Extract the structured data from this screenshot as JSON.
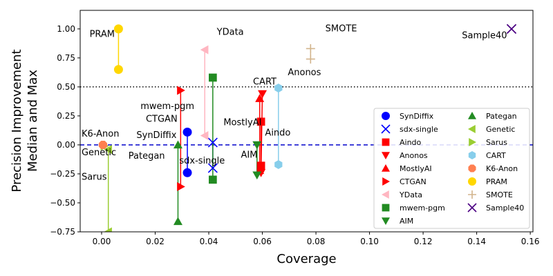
{
  "chart_data": {
    "type": "scatter",
    "xlabel": "Coverage",
    "ylabel_lines": [
      "Precision Improvement",
      "Median and Max"
    ],
    "xlim": [
      -0.008,
      0.161
    ],
    "ylim": [
      -0.75,
      1.16
    ],
    "xticks": [
      0.0,
      0.02,
      0.04,
      0.06,
      0.08,
      0.1,
      0.12,
      0.14,
      0.16
    ],
    "xtick_labels": [
      "0.00",
      "0.02",
      "0.04",
      "0.06",
      "0.08",
      "0.10",
      "0.12",
      "0.14",
      "0.16"
    ],
    "yticks": [
      -0.75,
      -0.5,
      -0.25,
      0.0,
      0.25,
      0.5,
      0.75,
      1.0
    ],
    "ytick_labels": [
      "−0.75",
      "−0.50",
      "−0.25",
      "0.00",
      "0.25",
      "0.50",
      "0.75",
      "1.00"
    ],
    "reference_lines": [
      {
        "y": 0.5,
        "style": "dotted",
        "color": "#000000"
      },
      {
        "y": 0.0,
        "style": "dashed",
        "color": "#0000cc"
      }
    ],
    "legend_position": "lower right",
    "series": [
      {
        "name": "SynDiffix",
        "marker": "circle",
        "color": "#0000ff",
        "points": [
          [
            0.032,
            0.11
          ],
          [
            0.032,
            -0.24
          ]
        ]
      },
      {
        "name": "sdx-single",
        "marker": "x",
        "color": "#0000ff",
        "points": [
          [
            0.0415,
            0.02
          ],
          [
            0.0415,
            -0.2
          ]
        ]
      },
      {
        "name": "Aindo",
        "marker": "square",
        "color": "#ff0000",
        "points": [
          [
            0.0595,
            0.2
          ],
          [
            0.0595,
            -0.18
          ]
        ]
      },
      {
        "name": "Anonos",
        "marker": "triangle-down",
        "color": "#ff0000",
        "points": [
          [
            0.06,
            0.44
          ],
          [
            0.0595,
            -0.24
          ]
        ]
      },
      {
        "name": "MostlyAI",
        "marker": "triangle-up",
        "color": "#ff0000",
        "points": [
          [
            0.059,
            0.4
          ],
          [
            0.059,
            -0.22
          ]
        ]
      },
      {
        "name": "CTGAN",
        "marker": "triangle-right",
        "color": "#ff0000",
        "points": [
          [
            0.0295,
            0.47
          ],
          [
            0.0295,
            -0.36
          ]
        ]
      },
      {
        "name": "YData",
        "marker": "triangle-left",
        "color": "#ffb6c1",
        "points": [
          [
            0.0385,
            0.82
          ],
          [
            0.0385,
            0.08
          ]
        ]
      },
      {
        "name": "mwem-pgm",
        "marker": "square",
        "color": "#228b22",
        "points": [
          [
            0.0415,
            0.58
          ],
          [
            0.0415,
            -0.3
          ]
        ]
      },
      {
        "name": "AIM",
        "marker": "triangle-down",
        "color": "#228b22",
        "points": [
          [
            0.058,
            0.0
          ],
          [
            0.058,
            -0.26
          ]
        ]
      },
      {
        "name": "Pategan",
        "marker": "triangle-up",
        "color": "#228b22",
        "points": [
          [
            0.0285,
            0.0
          ],
          [
            0.0285,
            -0.66
          ]
        ]
      },
      {
        "name": "Genetic",
        "marker": "triangle-left",
        "color": "#9acd32",
        "points": [
          [
            0.0025,
            -0.04
          ],
          [
            0.0025,
            -0.75
          ]
        ]
      },
      {
        "name": "Sarus",
        "marker": "triangle-right",
        "color": "#9acd32",
        "points": [
          [
            0.001,
            -0.01
          ],
          [
            0.001,
            -0.01
          ]
        ]
      },
      {
        "name": "CART",
        "marker": "hexagon",
        "color": "#87ceeb",
        "points": [
          [
            0.066,
            0.49
          ],
          [
            0.066,
            -0.17
          ]
        ]
      },
      {
        "name": "K6-Anon",
        "marker": "octagon",
        "color": "#ff7f50",
        "points": [
          [
            0.0005,
            0.0
          ],
          [
            0.0005,
            0.0
          ]
        ]
      },
      {
        "name": "PRAM",
        "marker": "circle",
        "color": "#ffd700",
        "points": [
          [
            0.0063,
            1.0
          ],
          [
            0.0063,
            0.65
          ]
        ]
      },
      {
        "name": "SMOTE",
        "marker": "plus",
        "color": "#d2b48c",
        "points": [
          [
            0.078,
            0.83
          ],
          [
            0.078,
            0.74
          ]
        ]
      },
      {
        "name": "Sample40",
        "marker": "x",
        "color": "#4b0082",
        "points": [
          [
            0.153,
            1.0
          ],
          [
            0.153,
            1.0
          ]
        ]
      }
    ],
    "annotations": [
      {
        "text": "PRAM",
        "x": -0.0045,
        "y": 0.93
      },
      {
        "text": "YData",
        "x": 0.043,
        "y": 0.95
      },
      {
        "text": "SMOTE",
        "x": 0.0835,
        "y": 0.98
      },
      {
        "text": "Sample40",
        "x": 0.1345,
        "y": 0.92
      },
      {
        "text": "mwem-pgm",
        "x": 0.0145,
        "y": 0.31
      },
      {
        "text": "Anonos",
        "x": 0.0695,
        "y": 0.6
      },
      {
        "text": "CART",
        "x": 0.0565,
        "y": 0.52
      },
      {
        "text": "CTGAN",
        "x": 0.0165,
        "y": 0.2
      },
      {
        "text": "MostlyAI",
        "x": 0.0455,
        "y": 0.17
      },
      {
        "text": "K6-Anon",
        "x": -0.0075,
        "y": 0.07
      },
      {
        "text": "SynDiffix",
        "x": 0.013,
        "y": 0.06
      },
      {
        "text": "Aindo",
        "x": 0.061,
        "y": 0.08
      },
      {
        "text": "Genetic",
        "x": -0.0075,
        "y": -0.09
      },
      {
        "text": "Pategan",
        "x": 0.01,
        "y": -0.12
      },
      {
        "text": "AIM",
        "x": 0.052,
        "y": -0.11
      },
      {
        "text": "sdx-single",
        "x": 0.029,
        "y": -0.16
      },
      {
        "text": "Sarus",
        "x": -0.0075,
        "y": -0.3
      }
    ]
  }
}
